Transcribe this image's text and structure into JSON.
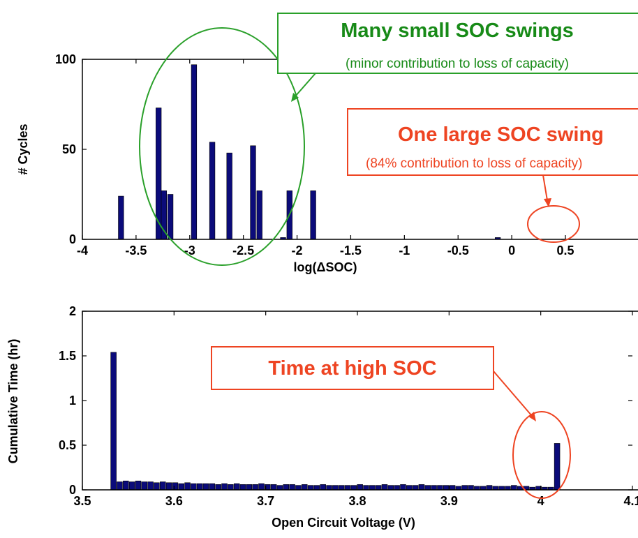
{
  "colors": {
    "bar": "#0b0b7a",
    "green": "#2aa02a",
    "red": "#ee4422",
    "green_text": "#178a17"
  },
  "chart_data": [
    {
      "type": "bar",
      "title": "",
      "xlabel": "log(ΔSOC)",
      "ylabel": "# Cycles",
      "xlim": [
        -4,
        0.5
      ],
      "ylim": [
        0,
        100
      ],
      "xticks": [
        -4,
        -3.5,
        -3,
        -2.5,
        -2,
        -1.5,
        -1,
        -0.5,
        0,
        0.5
      ],
      "xtick_labels": [
        "-4",
        "-3.5",
        "-3",
        "-2.5",
        "-2",
        "-1.5",
        "-1",
        "-0.5",
        "0",
        "0.5"
      ],
      "yticks": [
        0,
        50,
        100
      ],
      "ytick_labels": [
        "0",
        "50",
        "100"
      ],
      "bar_width": 0.05,
      "x": [
        -3.64,
        -3.29,
        -3.24,
        -3.18,
        -2.96,
        -2.79,
        -2.63,
        -2.41,
        -2.35,
        -2.13,
        -2.07,
        -1.85,
        -0.13
      ],
      "values": [
        24,
        73,
        27,
        25,
        97,
        54,
        48,
        52,
        27,
        1,
        27,
        27,
        1
      ],
      "annotations": [
        {
          "title": "Many small SOC swings",
          "subtitle": "(minor contribution to loss of capacity)"
        },
        {
          "title": "One large SOC swing",
          "subtitle": "(84% contribution to loss of capacity)"
        }
      ]
    },
    {
      "type": "bar",
      "title": "",
      "xlabel": "Open Circuit Voltage (V)",
      "ylabel": "Cumulative Time (hr)",
      "xlim": [
        3.5,
        4.1
      ],
      "ylim": [
        0,
        2
      ],
      "xticks": [
        3.5,
        3.6,
        3.7,
        3.8,
        3.9,
        4.0,
        4.1
      ],
      "xtick_labels": [
        "3.5",
        "3.6",
        "3.7",
        "3.8",
        "3.9",
        "4",
        "4.1"
      ],
      "yticks": [
        0,
        0.5,
        1,
        1.5,
        2
      ],
      "ytick_labels": [
        "0",
        "0.5",
        "1",
        "1.5",
        "2"
      ],
      "bar_width": 0.006,
      "x_start": 3.534,
      "x_step": 0.00672,
      "values": [
        1.54,
        0.09,
        0.1,
        0.09,
        0.1,
        0.09,
        0.09,
        0.08,
        0.09,
        0.08,
        0.08,
        0.07,
        0.08,
        0.07,
        0.07,
        0.07,
        0.07,
        0.06,
        0.07,
        0.06,
        0.07,
        0.06,
        0.06,
        0.06,
        0.07,
        0.06,
        0.06,
        0.05,
        0.06,
        0.06,
        0.05,
        0.06,
        0.05,
        0.05,
        0.06,
        0.05,
        0.05,
        0.05,
        0.05,
        0.05,
        0.06,
        0.05,
        0.05,
        0.05,
        0.06,
        0.05,
        0.05,
        0.06,
        0.05,
        0.05,
        0.06,
        0.05,
        0.05,
        0.05,
        0.05,
        0.05,
        0.04,
        0.05,
        0.05,
        0.04,
        0.04,
        0.05,
        0.04,
        0.04,
        0.04,
        0.05,
        0.04,
        0.04,
        0.03,
        0.04,
        0.03,
        0.03,
        0.52
      ],
      "annotations": [
        {
          "title": "Time at high SOC"
        }
      ]
    }
  ]
}
